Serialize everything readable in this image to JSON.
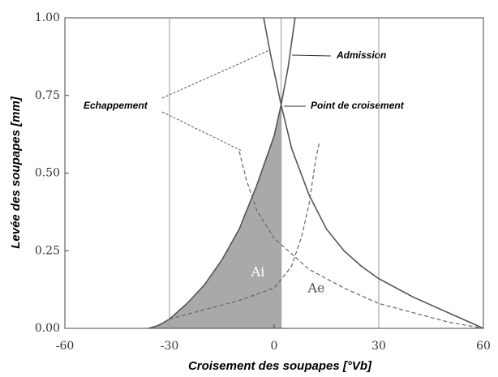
{
  "chart_data": {
    "type": "line",
    "x_label": "Croisement des soupapes [°Vb]",
    "y_label": "Levée des soupapes [mm]",
    "xlim": [
      -60,
      60
    ],
    "xticks": [
      -60,
      -30,
      0,
      30,
      60
    ],
    "ylim": [
      0,
      1
    ],
    "yticks": [
      {
        "value": 0,
        "label": "0.00"
      },
      {
        "value": 0.25,
        "label": "0.25"
      },
      {
        "value": 0.5,
        "label": "0.50"
      },
      {
        "value": 0.75,
        "label": "0.75"
      },
      {
        "value": 1,
        "label": "1.00"
      }
    ],
    "grid": true,
    "series": [
      {
        "name": "Admission",
        "color": "#555555",
        "dashed": false,
        "x": [
          -36,
          -33,
          -30,
          -25,
          -20,
          -15,
          -10,
          -5,
          0,
          2,
          4,
          6
        ],
        "values": [
          0,
          0.01,
          0.03,
          0.08,
          0.14,
          0.22,
          0.32,
          0.46,
          0.62,
          0.72,
          0.84,
          1.0
        ]
      },
      {
        "name": "Echappement",
        "color": "#555555",
        "dashed": false,
        "x": [
          -3,
          -1,
          2,
          5,
          10,
          15,
          20,
          25,
          30,
          40,
          50,
          60
        ],
        "values": [
          1.0,
          0.88,
          0.72,
          0.58,
          0.43,
          0.32,
          0.25,
          0.2,
          0.16,
          0.1,
          0.05,
          0
        ]
      },
      {
        "color": "#666666",
        "dashed": true,
        "x": [
          -10,
          -8,
          -5,
          0,
          5,
          10,
          20,
          30,
          40,
          50,
          60
        ],
        "values": [
          0.57,
          0.48,
          0.38,
          0.29,
          0.24,
          0.19,
          0.13,
          0.08,
          0.05,
          0.02,
          0
        ]
      },
      {
        "color": "#666666",
        "dashed": true,
        "x": [
          -35,
          -30,
          -20,
          -10,
          0,
          5,
          8,
          10,
          12,
          13
        ],
        "values": [
          0,
          0.03,
          0.06,
          0.09,
          0.13,
          0.2,
          0.3,
          0.4,
          0.55,
          0.6
        ]
      }
    ],
    "annotations": {
      "admission": "Admission",
      "echappement": "Echappement",
      "croisement": "Point de croisement",
      "ai": "Ai",
      "ae": "Ae"
    }
  }
}
